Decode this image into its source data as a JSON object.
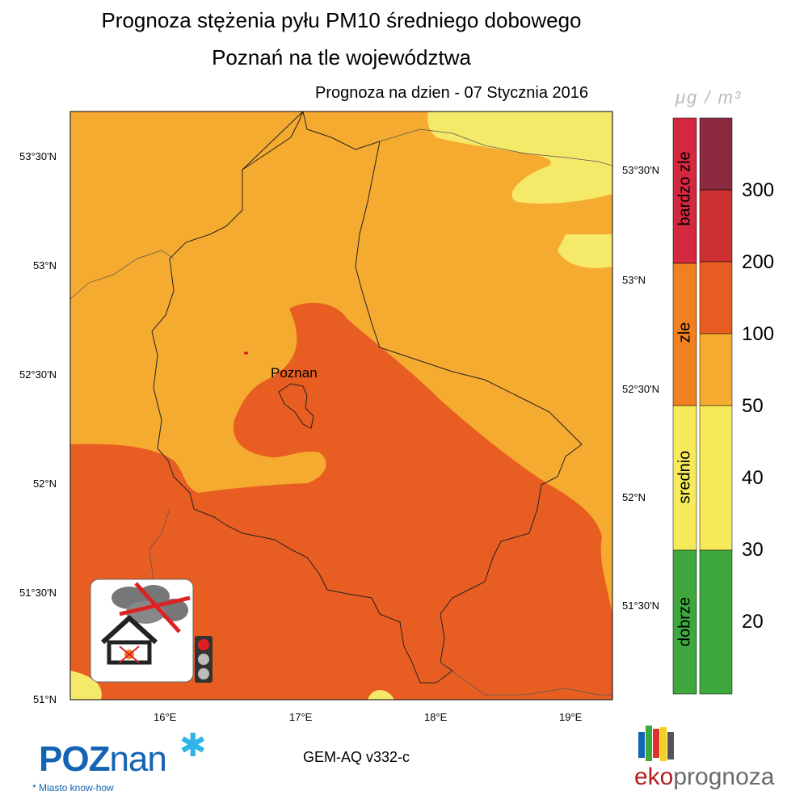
{
  "title_line1": "Prognoza stężenia pyłu PM10 średniego dobowego",
  "title_line2": "Poznań na tle województwa",
  "forecast_date": "Prognoza na dzien -  07 Stycznia 2016",
  "city_label": "Poznan",
  "lat_labels_left": [
    "53°30'N",
    "53°N",
    "52°30'N",
    "52°N",
    "51°30'N",
    "51°N"
  ],
  "lat_labels_right": [
    "53°30'N",
    "53°N",
    "52°30'N",
    "52°N",
    "51°30'N"
  ],
  "lon_labels": [
    "16°E",
    "17°E",
    "18°E",
    "19°E"
  ],
  "legend": {
    "unit": "μg / m³",
    "levels": [
      "300",
      "200",
      "100",
      "50",
      "40",
      "30",
      "20"
    ],
    "categories": [
      "bardzo zle",
      "zle",
      "srednio",
      "dobrze"
    ],
    "category_colors": [
      "#d42840",
      "#f08020",
      "#f6ea5a",
      "#3ea83e"
    ],
    "scale_colors": [
      "#8c2a42",
      "#cc3030",
      "#e85e22",
      "#f5ab30",
      "#f6ea5a",
      "#3ea83e"
    ]
  },
  "map_colors": {
    "moderate": "#f5ab30",
    "high": "#e85e22",
    "low": "#f5e96a"
  },
  "model_label": "GEM-AQ v332-c",
  "poznan_logo": {
    "text_main": "POZ",
    "text_low": "nan",
    "motto": "* Miasto know-how"
  },
  "ekoprognoza_logo": {
    "text_a": "eko",
    "text_b": "prognoza"
  },
  "icons": [
    "no-smoke-house-icon",
    "traffic-light-icon"
  ]
}
